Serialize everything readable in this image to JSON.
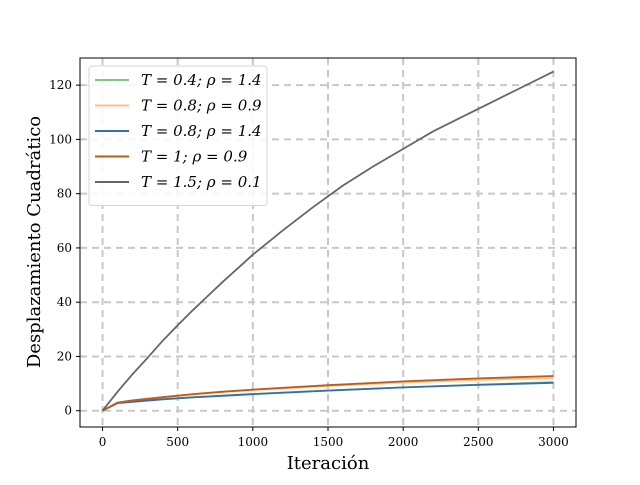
{
  "chart_data": {
    "type": "line",
    "title": "",
    "xlabel": "Iteración",
    "ylabel": "Desplazamiento Cuadrático",
    "xlim": [
      -150,
      3150
    ],
    "ylim": [
      -6,
      130
    ],
    "xticks": [
      0,
      500,
      1000,
      1500,
      2000,
      2500,
      3000
    ],
    "yticks": [
      0,
      20,
      40,
      60,
      80,
      100,
      120
    ],
    "grid": true,
    "legend_position": "top-left",
    "series": [
      {
        "name": "T = 0.4;  ρ = 1.4",
        "color": "#7fc97f",
        "x": [
          0,
          100,
          200,
          400,
          600,
          800,
          1000,
          1500,
          2000,
          2500,
          3000
        ],
        "y": [
          0,
          2.9,
          3.4,
          4.3,
          5.0,
          5.6,
          6.2,
          7.5,
          8.6,
          9.6,
          10.5
        ]
      },
      {
        "name": "T = 0.8;  ρ = 0.9",
        "color": "#fdc086",
        "x": [
          0,
          100,
          200,
          400,
          600,
          800,
          1000,
          1500,
          2000,
          2500,
          3000
        ],
        "y": [
          0,
          3.0,
          3.8,
          5.0,
          6.0,
          6.9,
          7.6,
          9.2,
          10.4,
          11.4,
          12.0
        ]
      },
      {
        "name": "T = 0.8;  ρ = 1.4",
        "color": "#386cb0",
        "x": [
          0,
          100,
          200,
          400,
          600,
          800,
          1000,
          1500,
          2000,
          2500,
          3000
        ],
        "y": [
          0,
          2.8,
          3.3,
          4.2,
          4.9,
          5.5,
          6.1,
          7.4,
          8.6,
          9.5,
          10.3
        ]
      },
      {
        "name": "T = 1;  ρ = 0.9",
        "color": "#bf5b17",
        "x": [
          0,
          100,
          200,
          400,
          600,
          800,
          1000,
          1500,
          2000,
          2500,
          3000
        ],
        "y": [
          0,
          3.0,
          3.8,
          5.0,
          6.1,
          7.0,
          7.8,
          9.4,
          10.8,
          11.9,
          12.8
        ]
      },
      {
        "name": "T = 1.5;  ρ = 0.1",
        "color": "#666666",
        "x": [
          0,
          100,
          200,
          300,
          400,
          500,
          600,
          700,
          800,
          900,
          1000,
          1200,
          1400,
          1600,
          1800,
          2000,
          2200,
          2400,
          2600,
          2800,
          3000
        ],
        "y": [
          0,
          7.0,
          13.5,
          19.5,
          25.8,
          31.5,
          37.0,
          42.3,
          47.5,
          52.5,
          57.5,
          66.5,
          75.0,
          83.0,
          90.0,
          96.5,
          103.0,
          108.5,
          114.0,
          119.5,
          125.0
        ]
      }
    ]
  }
}
